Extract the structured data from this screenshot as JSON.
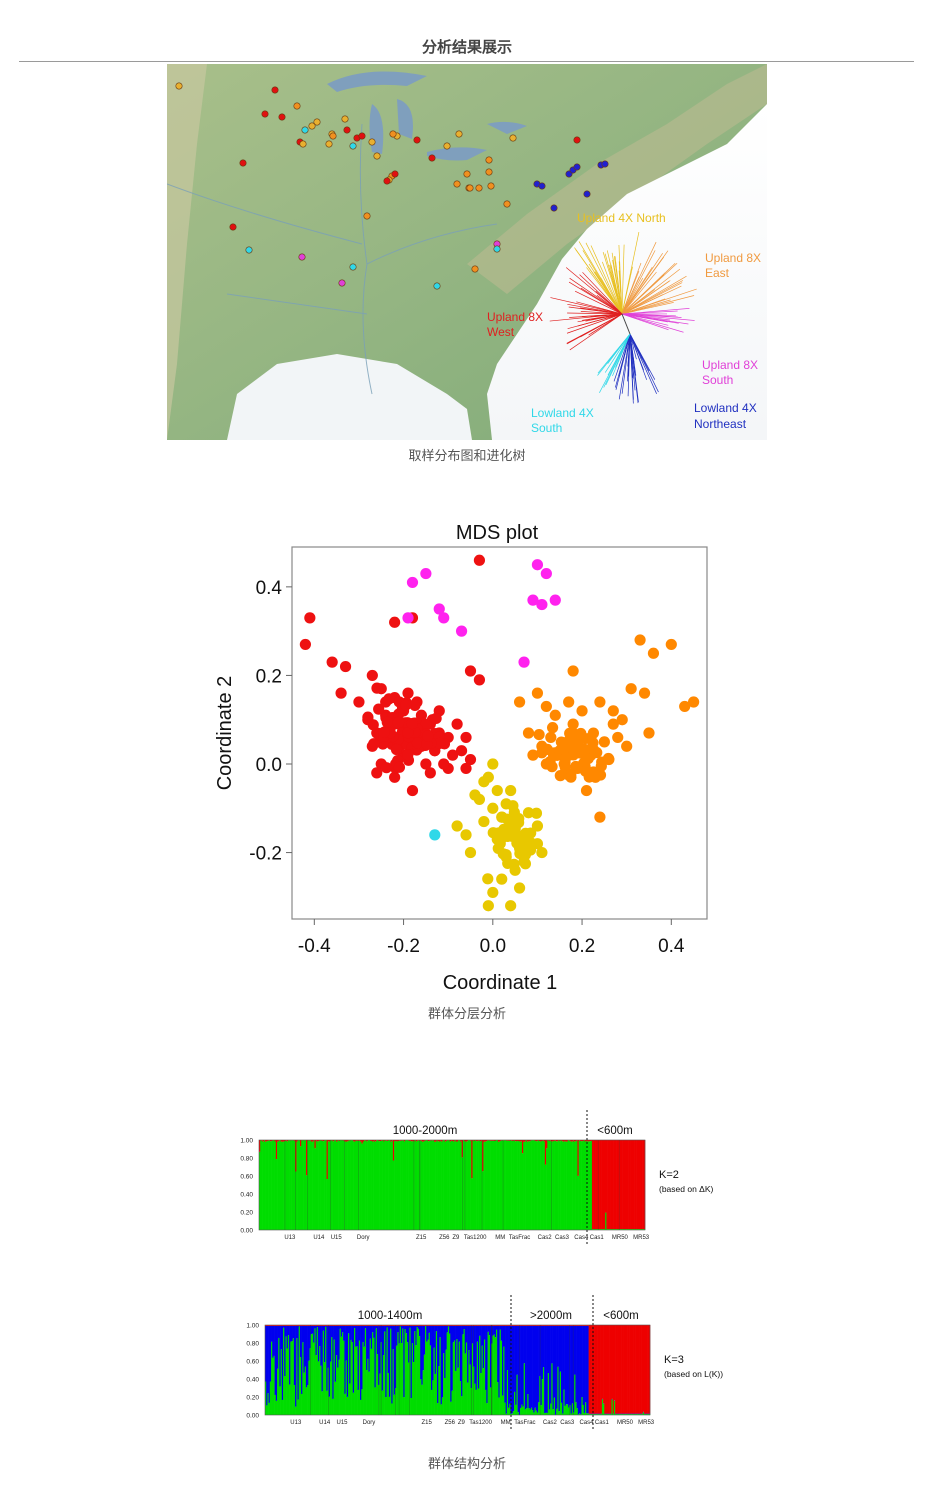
{
  "page_title": "分析结果展示",
  "figures": [
    {
      "caption": "取样分布图和进化树",
      "tree_labels": [
        {
          "line1": "Upland 4X North",
          "line2": "",
          "color": "#e8c020"
        },
        {
          "line1": "Upland 8X",
          "line2": "East",
          "color": "#f09a40"
        },
        {
          "line1": "Upland 8X",
          "line2": "West",
          "color": "#e02020"
        },
        {
          "line1": "Upland 8X",
          "line2": "South",
          "color": "#e040d8"
        },
        {
          "line1": "Lowland 4X",
          "line2": "South",
          "color": "#30d8e8"
        },
        {
          "line1": "Lowland 4X",
          "line2": "Northeast",
          "color": "#2030c0"
        }
      ]
    },
    {
      "caption": "群体分层分析"
    },
    {
      "caption": "群体结构分析"
    }
  ],
  "chart_data": [
    {
      "type": "scatter",
      "title": "MDS plot",
      "xlabel": "Coordinate 1",
      "ylabel": "Coordinate 2",
      "xlim": [
        -0.45,
        0.48
      ],
      "ylim": [
        -0.35,
        0.49
      ],
      "xticks": [
        "-0.4",
        "-0.2",
        "0.0",
        "0.2",
        "0.4"
      ],
      "yticks": [
        "0.4",
        "0.2",
        "0.0",
        "-0.2"
      ],
      "grid": false,
      "series": [
        {
          "color": "#ee1111",
          "points": [
            [
              -0.41,
              0.33
            ],
            [
              -0.42,
              0.27
            ],
            [
              -0.36,
              0.23
            ],
            [
              -0.33,
              0.22
            ],
            [
              -0.34,
              0.16
            ],
            [
              -0.3,
              0.14
            ],
            [
              -0.27,
              0.2
            ],
            [
              -0.25,
              0.17
            ],
            [
              -0.22,
              0.15
            ],
            [
              -0.19,
              0.16
            ],
            [
              -0.2,
              0.12
            ],
            [
              -0.24,
              0.11
            ],
            [
              -0.28,
              0.1
            ],
            [
              -0.26,
              0.07
            ],
            [
              -0.23,
              0.05
            ],
            [
              -0.2,
              0.02
            ],
            [
              -0.17,
              0.06
            ],
            [
              -0.14,
              0.09
            ],
            [
              -0.12,
              0.12
            ],
            [
              -0.1,
              0.06
            ],
            [
              -0.07,
              0.03
            ],
            [
              -0.05,
              0.01
            ],
            [
              -0.1,
              -0.01
            ],
            [
              -0.14,
              -0.02
            ],
            [
              -0.18,
              -0.06
            ],
            [
              -0.22,
              -0.03
            ],
            [
              -0.25,
              0.0
            ],
            [
              -0.27,
              0.04
            ],
            [
              -0.21,
              0.09
            ],
            [
              -0.16,
              0.11
            ],
            [
              -0.13,
              0.03
            ],
            [
              -0.11,
              0.0
            ],
            [
              -0.08,
              0.09
            ],
            [
              -0.06,
              0.06
            ],
            [
              -0.24,
              0.14
            ],
            [
              -0.18,
              0.08
            ],
            [
              -0.15,
              0.0
            ],
            [
              -0.2,
              0.05
            ],
            [
              -0.26,
              -0.02
            ],
            [
              -0.12,
              0.07
            ],
            [
              -0.03,
              0.46
            ],
            [
              -0.22,
              0.32
            ],
            [
              -0.18,
              0.33
            ],
            [
              -0.05,
              0.21
            ],
            [
              -0.03,
              0.19
            ],
            [
              -0.17,
              0.14
            ],
            [
              -0.09,
              0.02
            ],
            [
              -0.06,
              -0.01
            ],
            [
              -0.16,
              0.04
            ],
            [
              -0.23,
              0.08
            ]
          ]
        },
        {
          "color": "#ff8800",
          "points": [
            [
              0.33,
              0.28
            ],
            [
              0.36,
              0.25
            ],
            [
              0.4,
              0.27
            ],
            [
              0.45,
              0.14
            ],
            [
              0.43,
              0.13
            ],
            [
              0.31,
              0.17
            ],
            [
              0.34,
              0.16
            ],
            [
              0.35,
              0.07
            ],
            [
              0.29,
              0.1
            ],
            [
              0.27,
              0.12
            ],
            [
              0.24,
              0.14
            ],
            [
              0.2,
              0.12
            ],
            [
              0.18,
              0.09
            ],
            [
              0.17,
              0.14
            ],
            [
              0.14,
              0.11
            ],
            [
              0.12,
              0.13
            ],
            [
              0.1,
              0.16
            ],
            [
              0.06,
              0.14
            ],
            [
              0.08,
              0.07
            ],
            [
              0.11,
              0.04
            ],
            [
              0.14,
              0.02
            ],
            [
              0.16,
              0.0
            ],
            [
              0.19,
              -0.01
            ],
            [
              0.22,
              0.02
            ],
            [
              0.25,
              0.05
            ],
            [
              0.28,
              0.06
            ],
            [
              0.3,
              0.04
            ],
            [
              0.26,
              0.01
            ],
            [
              0.23,
              -0.03
            ],
            [
              0.21,
              -0.06
            ],
            [
              0.24,
              -0.12
            ],
            [
              0.13,
              0.06
            ],
            [
              0.17,
              0.05
            ],
            [
              0.2,
              0.06
            ],
            [
              0.12,
              0.0
            ],
            [
              0.09,
              0.02
            ],
            [
              0.18,
              0.21
            ],
            [
              0.15,
              0.03
            ],
            [
              0.19,
              0.03
            ],
            [
              0.27,
              0.09
            ]
          ]
        },
        {
          "color": "#e8c800",
          "points": [
            [
              0.0,
              0.0
            ],
            [
              -0.01,
              -0.03
            ],
            [
              0.01,
              -0.06
            ],
            [
              -0.03,
              -0.08
            ],
            [
              0.0,
              -0.1
            ],
            [
              0.02,
              -0.12
            ],
            [
              0.05,
              -0.14
            ],
            [
              0.08,
              -0.16
            ],
            [
              0.1,
              -0.18
            ],
            [
              0.06,
              -0.19
            ],
            [
              0.03,
              -0.21
            ],
            [
              0.05,
              -0.24
            ],
            [
              0.02,
              -0.26
            ],
            [
              0.0,
              -0.29
            ],
            [
              -0.01,
              -0.32
            ],
            [
              0.04,
              -0.32
            ],
            [
              0.06,
              -0.28
            ],
            [
              -0.06,
              -0.16
            ],
            [
              -0.08,
              -0.14
            ],
            [
              -0.02,
              -0.13
            ],
            [
              0.1,
              -0.14
            ],
            [
              0.11,
              -0.2
            ],
            [
              0.07,
              -0.22
            ],
            [
              -0.04,
              -0.07
            ],
            [
              0.03,
              -0.09
            ],
            [
              -0.05,
              -0.2
            ],
            [
              0.01,
              -0.17
            ],
            [
              0.08,
              -0.11
            ],
            [
              0.04,
              -0.06
            ],
            [
              -0.02,
              -0.04
            ]
          ]
        },
        {
          "color": "#ff22ee",
          "points": [
            [
              -0.15,
              0.43
            ],
            [
              -0.18,
              0.41
            ],
            [
              -0.12,
              0.35
            ],
            [
              -0.19,
              0.33
            ],
            [
              -0.11,
              0.33
            ],
            [
              -0.07,
              0.3
            ],
            [
              0.1,
              0.45
            ],
            [
              0.12,
              0.43
            ],
            [
              0.14,
              0.37
            ],
            [
              0.09,
              0.37
            ],
            [
              0.11,
              0.36
            ],
            [
              0.07,
              0.23
            ]
          ]
        },
        {
          "color": "#30d8e8",
          "points": [
            [
              -0.13,
              -0.16
            ]
          ]
        }
      ]
    },
    {
      "type": "bar",
      "title": "",
      "ylim": [
        0,
        1
      ],
      "yticks": [
        "1.00",
        "0.80",
        "0.60",
        "0.40",
        "0.20",
        "0.00"
      ],
      "regions": [
        "1000-2000m",
        "<600m"
      ],
      "k_label": "K=2",
      "basis": "(based on ΔK)",
      "categories": [
        "U13",
        "U14",
        "U15",
        "Dory",
        "Z15",
        "Z56",
        "Z9",
        "Tas1200",
        "MM",
        "TasFrac",
        "Cas2",
        "Cas3",
        "Cas4",
        "Cas1",
        "MR50",
        "MR53"
      ],
      "series": [
        {
          "name": "",
          "color": "#00dd00"
        },
        {
          "name": "",
          "color": "#ee0000"
        }
      ]
    },
    {
      "type": "bar",
      "title": "",
      "ylim": [
        0,
        1
      ],
      "yticks": [
        "1.00",
        "0.80",
        "0.60",
        "0.40",
        "0.20",
        "0.00"
      ],
      "regions": [
        "1000-1400m",
        ">2000m",
        "<600m"
      ],
      "k_label": "K=3",
      "basis": "(based on L(K))",
      "categories": [
        "U13",
        "U14",
        "U15",
        "Dory",
        "Z15",
        "Z56",
        "Z9",
        "Tas1200",
        "MM",
        "TasFrac",
        "Cas2",
        "Cas3",
        "Cas4",
        "Cas1",
        "MR50",
        "MR53"
      ],
      "series": [
        {
          "name": "",
          "color": "#00dd00"
        },
        {
          "name": "",
          "color": "#0000ee"
        },
        {
          "name": "",
          "color": "#ee0000"
        }
      ]
    }
  ]
}
